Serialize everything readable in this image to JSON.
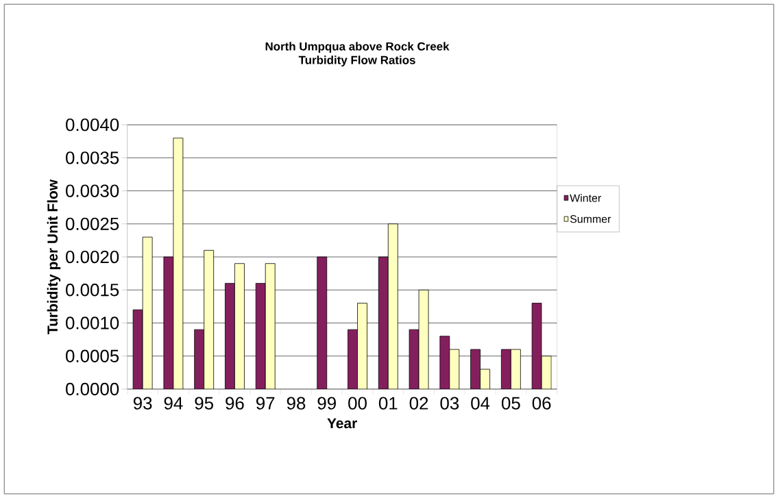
{
  "chart_data": {
    "type": "bar",
    "title": "North Umpqua above Rock Creek",
    "subtitle": "Turbidity Flow Ratios",
    "xlabel": "Year",
    "ylabel": "Turbidity per Unit Flow",
    "categories": [
      "93",
      "94",
      "95",
      "96",
      "97",
      "98",
      "99",
      "00",
      "01",
      "02",
      "03",
      "04",
      "05",
      "06"
    ],
    "series": [
      {
        "name": "Winter",
        "color": "#841f5d",
        "values": [
          0.0012,
          0.002,
          0.0009,
          0.0016,
          0.0016,
          null,
          0.002,
          0.0009,
          0.002,
          0.0009,
          0.0008,
          0.0006,
          0.0006,
          0.0013
        ]
      },
      {
        "name": "Summer",
        "color": "#ffffc0",
        "values": [
          0.0023,
          0.0038,
          0.0021,
          0.0019,
          0.0019,
          null,
          null,
          0.0013,
          0.0025,
          0.0015,
          0.0006,
          0.0003,
          0.0006,
          0.0005
        ]
      }
    ],
    "ylim": [
      0,
      0.004
    ],
    "yticks": [
      {
        "value": 0,
        "label": "0.0000"
      },
      {
        "value": 0.0005,
        "label": "0.0005"
      },
      {
        "value": 0.001,
        "label": "0.0010"
      },
      {
        "value": 0.0015,
        "label": "0.0015"
      },
      {
        "value": 0.002,
        "label": "0.0020"
      },
      {
        "value": 0.0025,
        "label": "0.0025"
      },
      {
        "value": 0.003,
        "label": "0.0030"
      },
      {
        "value": 0.0035,
        "label": "0.0035"
      },
      {
        "value": 0.004,
        "label": "0.0040"
      }
    ],
    "grid": "y",
    "legend": "right"
  }
}
